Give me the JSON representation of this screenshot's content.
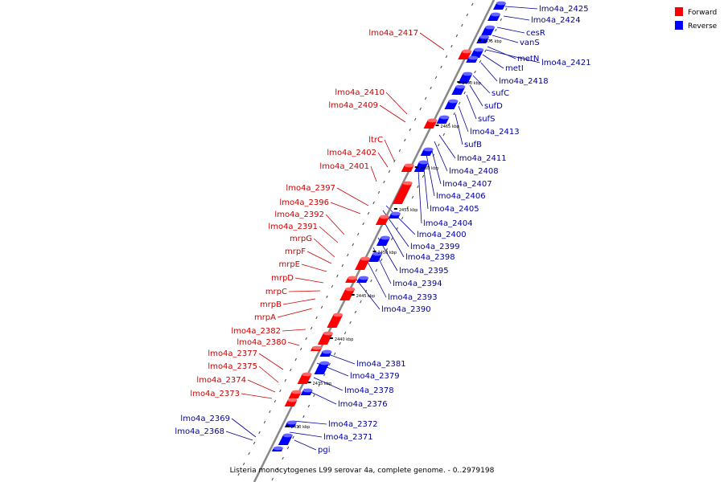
{
  "legend": [
    {
      "label": "Forward",
      "color": "#ff0000"
    },
    {
      "label": "Reverse",
      "color": "#0000ff"
    }
  ],
  "caption": "Listeria monocytogenes L99 serovar 4a, complete genome. - 0..2979198",
  "colors": {
    "forward": "#ff0000",
    "reverse": "#0000ff",
    "forward_label": "#cc0000",
    "reverse_label": "#000099",
    "axis": "#888888"
  },
  "scale_labels": [
    "2475 kbp",
    "2470 kbp",
    "2465 kbp",
    "2460 kbp",
    "2455 kbp",
    "2450 kbp",
    "2445 kbp",
    "2440 kbp",
    "2435 kbp",
    "2430 kbp"
  ],
  "genes_forward": [
    "lmo4a_2417",
    "lmo4a_2410",
    "lmo4a_2409",
    "ltrC",
    "lmo4a_2402",
    "lmo4a_2401",
    "lmo4a_2397",
    "lmo4a_2396",
    "lmo4a_2392",
    "lmo4a_2391",
    "mrpG",
    "mrpF",
    "mrpE",
    "mrpD",
    "mrpC",
    "mrpB",
    "mrpA",
    "lmo4a_2382",
    "lmo4a_2380",
    "lmo4a_2377",
    "lmo4a_2375",
    "lmo4a_2374",
    "lmo4a_2373"
  ],
  "genes_reverse": [
    "lmo4a_2425",
    "lmo4a_2424",
    "cesR",
    "vanS",
    "metN",
    "lmo4a_2421",
    "metI",
    "lmo4a_2418",
    "sufC",
    "sufD",
    "sufS",
    "lmo4a_2413",
    "sufB",
    "lmo4a_2411",
    "lmo4a_2408",
    "lmo4a_2407",
    "lmo4a_2406",
    "lmo4a_2405",
    "lmo4a_2404",
    "lmo4a_2400",
    "lmo4a_2399",
    "lmo4a_2398",
    "lmo4a_2395",
    "lmo4a_2394",
    "lmo4a_2393",
    "lmo4a_2390",
    "lmo4a_2381",
    "lmo4a_2379",
    "lmo4a_2378",
    "lmo4a_2376",
    "lmo4a_2372",
    "lmo4a_2371",
    "pgi",
    "lmo4a_2369",
    "lmo4a_2368"
  ]
}
